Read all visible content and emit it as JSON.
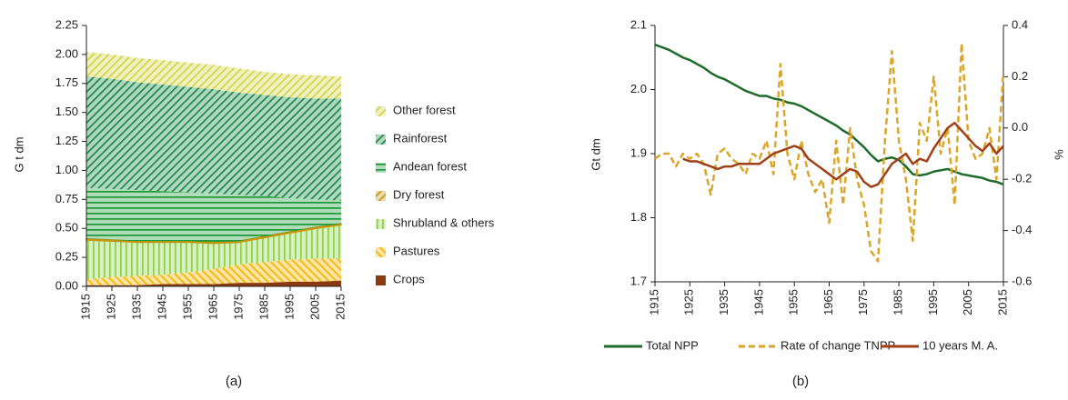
{
  "chart_data": [
    {
      "type": "stacked-area",
      "caption": "(a)",
      "ylabel": "G t dm",
      "x": [
        1915,
        1925,
        1935,
        1945,
        1955,
        1965,
        1975,
        1985,
        1995,
        2005,
        2015
      ],
      "xlim": [
        1915,
        2015
      ],
      "xticks": [
        1915,
        1925,
        1935,
        1945,
        1955,
        1965,
        1975,
        1985,
        1995,
        2005,
        2015
      ],
      "ylim": [
        0,
        2.25
      ],
      "yticks": [
        {
          "value": 0,
          "label": "0.00"
        },
        {
          "value": 0.25,
          "label": "0.25"
        },
        {
          "value": 0.5,
          "label": "0.50"
        },
        {
          "value": 0.75,
          "label": "0.75"
        },
        {
          "value": 1,
          "label": "1.00"
        },
        {
          "value": 1.25,
          "label": "1.25"
        },
        {
          "value": 1.5,
          "label": "1.50"
        },
        {
          "value": 1.75,
          "label": "1.75"
        },
        {
          "value": 2,
          "label": "2.00"
        },
        {
          "value": 2.25,
          "label": "2.25"
        }
      ],
      "legend": "right",
      "series": [
        {
          "name": "Crops",
          "color": "#8b3a0f",
          "values": [
            0.01,
            0.01,
            0.01,
            0.02,
            0.02,
            0.02,
            0.03,
            0.03,
            0.04,
            0.04,
            0.05
          ]
        },
        {
          "name": "Pastures",
          "color": "#f5b400",
          "values": [
            0.05,
            0.07,
            0.08,
            0.08,
            0.1,
            0.13,
            0.16,
            0.18,
            0.19,
            0.2,
            0.19
          ]
        },
        {
          "name": "Shrubland & others",
          "color": "#8fd14f",
          "values": [
            0.34,
            0.31,
            0.29,
            0.28,
            0.26,
            0.22,
            0.19,
            0.21,
            0.23,
            0.26,
            0.29
          ]
        },
        {
          "name": "Dry forest",
          "color": "#c8960c",
          "values": [
            0.01,
            0.01,
            0.01,
            0.01,
            0.01,
            0.01,
            0.01,
            0.01,
            0.01,
            0.01,
            0.01
          ]
        },
        {
          "name": "Andean forest",
          "color": "#1e9b3a",
          "values": [
            0.44,
            0.44,
            0.44,
            0.43,
            0.42,
            0.42,
            0.4,
            0.35,
            0.29,
            0.24,
            0.2
          ]
        },
        {
          "name": "Rainforest",
          "color": "#1e8b4e",
          "values": [
            0.96,
            0.95,
            0.93,
            0.92,
            0.91,
            0.9,
            0.88,
            0.87,
            0.87,
            0.87,
            0.88
          ]
        },
        {
          "name": "Other forest",
          "color": "#d4d44a",
          "values": [
            0.21,
            0.21,
            0.21,
            0.21,
            0.21,
            0.21,
            0.21,
            0.2,
            0.2,
            0.2,
            0.19
          ]
        }
      ]
    },
    {
      "type": "line",
      "caption": "(b)",
      "ylabel": "Gt dm",
      "y2label": "%",
      "x": [
        1915,
        1917,
        1919,
        1921,
        1923,
        1925,
        1927,
        1929,
        1931,
        1933,
        1935,
        1937,
        1939,
        1941,
        1943,
        1945,
        1947,
        1949,
        1951,
        1953,
        1955,
        1957,
        1959,
        1961,
        1963,
        1965,
        1967,
        1969,
        1971,
        1973,
        1975,
        1977,
        1979,
        1981,
        1983,
        1985,
        1987,
        1989,
        1991,
        1993,
        1995,
        1997,
        1999,
        2001,
        2003,
        2005,
        2007,
        2009,
        2011,
        2013,
        2015
      ],
      "xlim": [
        1915,
        2015
      ],
      "xticks": [
        1915,
        1925,
        1935,
        1945,
        1955,
        1965,
        1975,
        1985,
        1995,
        2005,
        2015
      ],
      "ylim": [
        1.7,
        2.1
      ],
      "yticks": [
        1.7,
        1.8,
        1.9,
        {
          "value": 2,
          "label": "2.0"
        },
        2.1
      ],
      "y2lim": [
        -0.6,
        0.4
      ],
      "y2ticks": [
        -0.6,
        -0.4,
        -0.2,
        {
          "value": 0,
          "label": "0.0"
        },
        0.2,
        0.4
      ],
      "legend": "bottom",
      "series": [
        {
          "name": "Total NPP",
          "color": "#1e6b2a",
          "style": "solid",
          "values": [
            2.07,
            2.066,
            2.062,
            2.056,
            2.05,
            2.046,
            2.04,
            2.034,
            2.026,
            2.02,
            2.016,
            2.01,
            2.004,
            1.998,
            1.994,
            1.99,
            1.99,
            1.986,
            1.984,
            1.98,
            1.978,
            1.974,
            1.968,
            1.962,
            1.956,
            1.95,
            1.944,
            1.936,
            1.93,
            1.92,
            1.91,
            1.898,
            1.888,
            1.892,
            1.894,
            1.89,
            1.88,
            1.868,
            1.866,
            1.868,
            1.872,
            1.874,
            1.876,
            1.872,
            1.868,
            1.866,
            1.864,
            1.862,
            1.858,
            1.856,
            1.852
          ]
        },
        {
          "name": "Rate of change TNPP",
          "color": "#dba628",
          "style": "dashed",
          "axis": "y2",
          "values": [
            -0.12,
            -0.1,
            -0.1,
            -0.15,
            -0.1,
            -0.12,
            -0.1,
            -0.14,
            -0.26,
            -0.1,
            -0.08,
            -0.12,
            -0.14,
            -0.18,
            -0.1,
            -0.12,
            -0.05,
            -0.18,
            0.25,
            -0.1,
            -0.2,
            -0.05,
            -0.18,
            -0.25,
            -0.2,
            -0.37,
            -0.05,
            -0.3,
            0.0,
            -0.2,
            -0.3,
            -0.48,
            -0.52,
            -0.05,
            0.3,
            -0.05,
            -0.2,
            -0.44,
            0.02,
            -0.05,
            0.2,
            -0.1,
            0.0,
            -0.3,
            0.33,
            -0.05,
            -0.12,
            -0.1,
            0.0,
            -0.2,
            0.22
          ]
        },
        {
          "name": "10 years M. A.",
          "color": "#a0401a",
          "style": "solid",
          "axis": "y2",
          "values": [
            null,
            null,
            null,
            null,
            -0.12,
            -0.13,
            -0.13,
            -0.14,
            -0.15,
            -0.16,
            -0.15,
            -0.15,
            -0.14,
            -0.14,
            -0.14,
            -0.14,
            -0.12,
            -0.1,
            -0.09,
            -0.08,
            -0.07,
            -0.08,
            -0.12,
            -0.14,
            -0.16,
            -0.18,
            -0.2,
            -0.18,
            -0.16,
            -0.17,
            -0.21,
            -0.23,
            -0.22,
            -0.18,
            -0.14,
            -0.12,
            -0.1,
            -0.14,
            -0.12,
            -0.13,
            -0.08,
            -0.04,
            0.0,
            0.02,
            -0.01,
            -0.04,
            -0.07,
            -0.09,
            -0.06,
            -0.1,
            -0.07
          ]
        }
      ]
    }
  ]
}
